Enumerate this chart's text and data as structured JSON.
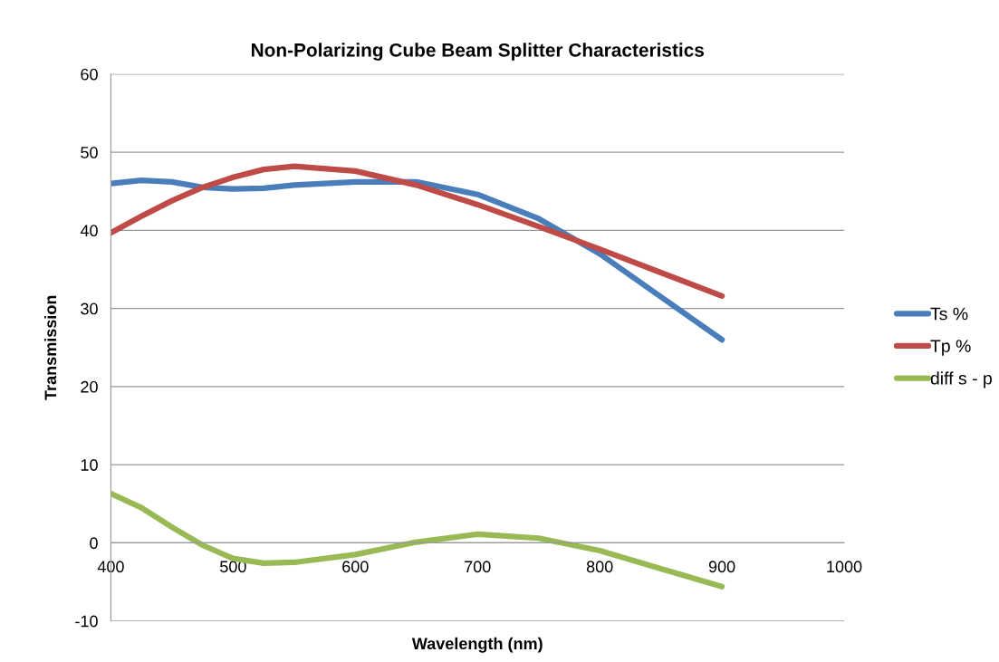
{
  "chart_data": {
    "type": "line",
    "title": "Non-Polarizing Cube Beam Splitter Characteristics",
    "xlabel": "Wavelength (nm)",
    "ylabel": "Transmission",
    "x": [
      400,
      425,
      450,
      475,
      500,
      525,
      550,
      600,
      650,
      700,
      750,
      800,
      850,
      900
    ],
    "series": [
      {
        "name": "Ts %",
        "color": "#4a7ebb",
        "values": [
          46.0,
          46.4,
          46.2,
          45.5,
          45.3,
          45.4,
          45.8,
          46.2,
          46.2,
          44.6,
          41.5,
          37.0,
          31.5,
          26.0
        ]
      },
      {
        "name": "Tp %",
        "color": "#be4b48",
        "values": [
          39.7,
          41.8,
          43.8,
          45.5,
          46.8,
          47.8,
          48.2,
          47.6,
          45.8,
          43.3,
          40.5,
          37.6,
          34.6,
          31.6
        ]
      },
      {
        "name": "diff s - p",
        "color": "#98b954",
        "values": [
          6.3,
          4.5,
          2.0,
          -0.3,
          -2.0,
          -2.6,
          -2.5,
          -1.5,
          0.1,
          1.1,
          0.6,
          -1.0,
          -3.3,
          -5.6
        ]
      }
    ],
    "xlim": [
      400,
      1000
    ],
    "xticks": [
      400,
      500,
      600,
      700,
      800,
      900,
      1000
    ],
    "ylim": [
      -10,
      60
    ],
    "yticks": [
      -10,
      0,
      10,
      20,
      30,
      40,
      50,
      60
    ],
    "grid": "y",
    "legend": "right",
    "marker": "none",
    "line_style": "solid"
  }
}
